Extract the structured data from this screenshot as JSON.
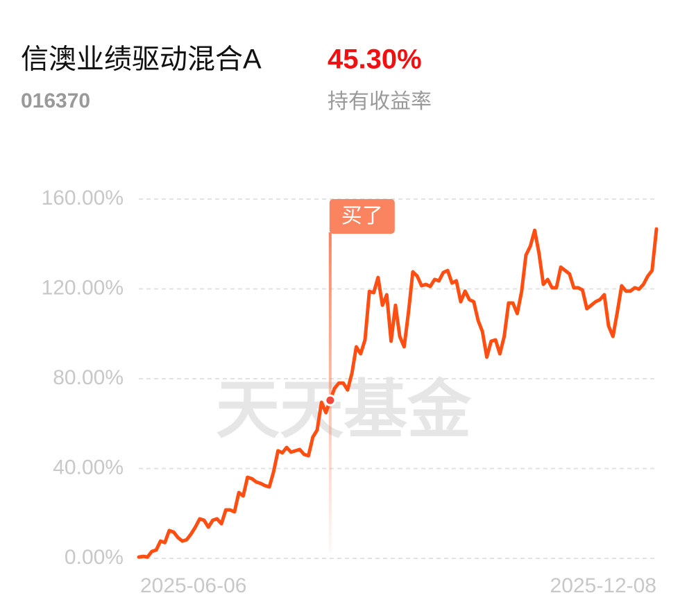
{
  "header": {
    "name": "信澳业绩驱动混合A",
    "code": "016370",
    "return": {
      "value": 45.3,
      "label": "45.30%"
    },
    "return_caption": "持有收益率"
  },
  "chart_data": {
    "type": "line",
    "watermark": "天天基金",
    "categories": [
      "2025-06-06",
      null,
      null,
      null,
      null,
      null,
      null,
      null,
      null,
      null,
      null,
      null,
      null,
      null,
      null,
      null,
      null,
      null,
      null,
      null,
      null,
      null,
      null,
      null,
      null,
      null,
      null,
      null,
      null,
      null,
      null,
      null,
      null,
      null,
      null,
      null,
      null,
      null,
      null,
      null,
      null,
      null,
      null,
      null,
      null,
      null,
      null,
      null,
      null,
      null,
      null,
      null,
      null,
      null,
      null,
      null,
      null,
      null,
      null,
      null,
      null,
      null,
      null,
      null,
      null,
      null,
      null,
      null,
      null,
      null,
      null,
      null,
      null,
      null,
      null,
      null,
      null,
      null,
      null,
      null,
      null,
      null,
      null,
      null,
      null,
      null,
      null,
      null,
      null,
      null,
      null,
      null,
      null,
      null,
      null,
      null,
      null,
      null,
      null,
      null,
      null,
      null,
      null,
      null,
      null,
      null,
      null,
      null,
      null,
      null,
      null,
      null,
      null,
      null,
      null,
      null,
      null,
      null,
      null,
      "2025-12-08"
    ],
    "series": [
      {
        "color": "#ff4e12",
        "values": [
          0.6,
          0.9,
          0.6,
          3.1,
          3.7,
          7.7,
          7.0,
          12.4,
          11.7,
          9.3,
          7.7,
          8.3,
          10.8,
          13.9,
          17.6,
          17.0,
          13.9,
          17.0,
          17.6,
          15.4,
          21.6,
          21.6,
          20.7,
          29.3,
          27.8,
          36.1,
          35.5,
          34.0,
          33.4,
          32.4,
          31.8,
          38.6,
          47.9,
          47.0,
          49.4,
          47.3,
          47.9,
          48.5,
          46.3,
          45.7,
          54.0,
          57.1,
          69.5,
          64.9,
          70.4,
          75.7,
          78.1,
          78.1,
          75.0,
          82.5,
          94.2,
          91.1,
          97.3,
          118.9,
          118.3,
          125.1,
          112.7,
          117.4,
          96.7,
          112.7,
          98.8,
          94.2,
          109.7,
          127.6,
          125.7,
          121.4,
          122.0,
          121.1,
          124.2,
          123.6,
          127.3,
          128.2,
          122.6,
          123.6,
          114.3,
          119.0,
          115.2,
          114.3,
          105.9,
          101.0,
          89.6,
          96.7,
          97.3,
          91.1,
          98.8,
          113.7,
          113.7,
          109.0,
          118.9,
          135.0,
          139.0,
          146.1,
          135.9,
          122.0,
          124.2,
          120.5,
          120.5,
          129.7,
          128.2,
          126.7,
          120.5,
          120.5,
          119.5,
          111.2,
          112.7,
          114.3,
          115.2,
          117.4,
          103.5,
          98.8,
          109.7,
          121.4,
          119.0,
          119.0,
          120.5,
          119.9,
          122.0,
          125.7,
          128.2,
          146.7
        ]
      }
    ],
    "annotations": [
      {
        "text": "买了",
        "x_index": 44
      }
    ],
    "ylim": [
      0,
      160
    ],
    "yticks": [
      {
        "value": 0,
        "label": "0.00%"
      },
      {
        "value": 40,
        "label": "40.00%"
      },
      {
        "value": 80,
        "label": "80.00%"
      },
      {
        "value": 120,
        "label": "120.00%"
      },
      {
        "value": 160,
        "label": "160.00%"
      }
    ],
    "grid": true
  }
}
